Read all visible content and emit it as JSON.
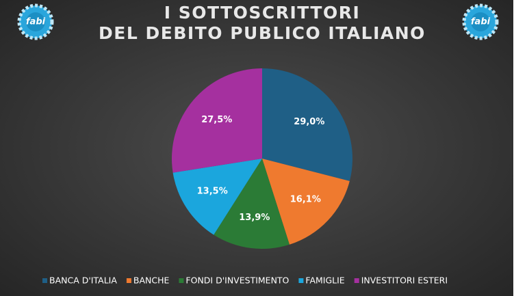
{
  "logo": "fabi",
  "chart_data": {
    "type": "pie",
    "title": [
      "I SOTTOSCRITTORI",
      "DEL DEBITO PUBLICO ITALIANO"
    ],
    "categories": [
      "BANCA D'ITALIA",
      "BANCHE",
      "FONDI D'INVESTIMENTO",
      "FAMIGLIE",
      "INVESTITORI ESTERI"
    ],
    "values": [
      29.0,
      16.1,
      13.9,
      13.5,
      27.5
    ],
    "value_labels": [
      "29,0%",
      "16,1%",
      "13,9%",
      "13,5%",
      "27,5%"
    ],
    "colors": [
      "#1f5f86",
      "#ef7a2f",
      "#2b7b36",
      "#1ba6dd",
      "#a5309f"
    ],
    "legend": "bottom"
  }
}
